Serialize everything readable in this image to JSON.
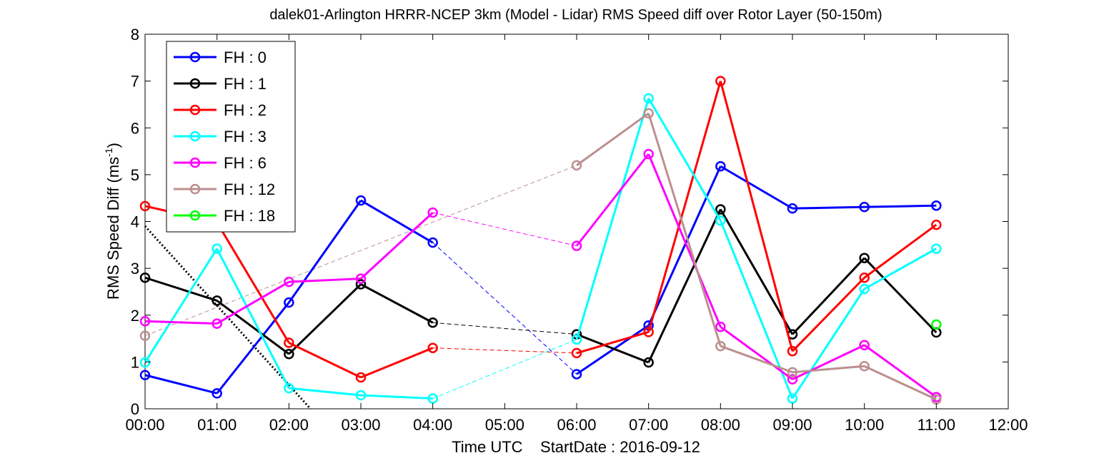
{
  "chart_data": {
    "type": "line",
    "title": "dalek01-Arlington HRRR-NCEP 3km (Model - Lidar) RMS Speed diff over Rotor Layer (50-150m)",
    "xlabel": "Time UTC    StartDate : 2016-09-12",
    "ylabel_main": "RMS Speed Diff (ms",
    "ylabel_sup": "-1",
    "ylabel_end": ")",
    "x_ticks": [
      "00:00",
      "01:00",
      "02:00",
      "03:00",
      "04:00",
      "05:00",
      "06:00",
      "07:00",
      "08:00",
      "09:00",
      "10:00",
      "11:00",
      "12:00"
    ],
    "xlim": [
      0,
      12
    ],
    "ylim": [
      0,
      8
    ],
    "y_ticks": [
      "0",
      "1",
      "2",
      "3",
      "4",
      "5",
      "6",
      "7",
      "8"
    ],
    "grid": false,
    "legend_position": "top-left",
    "dashed_link_note": "thin dashed lines connect points across gaps",
    "series": [
      {
        "name": "FH : 0",
        "color": "#0000ff",
        "x": [
          0,
          1,
          2,
          3,
          4,
          6,
          7,
          8,
          9,
          10,
          11
        ],
        "y": [
          0.72,
          0.33,
          2.27,
          4.45,
          3.55,
          0.74,
          1.78,
          5.18,
          4.28,
          4.31,
          4.34
        ]
      },
      {
        "name": "FH : 1",
        "color": "#000000",
        "x": [
          0,
          1,
          2,
          3,
          4,
          6,
          7,
          8,
          9,
          10,
          11
        ],
        "y": [
          2.8,
          2.31,
          1.17,
          2.66,
          1.84,
          1.59,
          0.99,
          4.26,
          1.59,
          3.22,
          1.63
        ]
      },
      {
        "name": "FH : 2",
        "color": "#ff0000",
        "x": [
          0,
          1,
          2,
          3,
          4,
          6,
          7,
          8,
          9,
          10,
          11
        ],
        "y": [
          4.33,
          3.98,
          1.41,
          0.67,
          1.3,
          1.19,
          1.64,
          7.0,
          1.23,
          2.8,
          3.93
        ]
      },
      {
        "name": "FH : 3",
        "color": "#00ffff",
        "x": [
          0,
          1,
          2,
          3,
          4,
          6,
          7,
          8,
          9,
          10,
          11
        ],
        "y": [
          0.99,
          3.42,
          0.44,
          0.29,
          0.22,
          1.48,
          6.63,
          4.02,
          0.22,
          2.56,
          3.42
        ]
      },
      {
        "name": "FH : 6",
        "color": "#ff00ff",
        "x": [
          0,
          1,
          2,
          3,
          4,
          6,
          7,
          8,
          9,
          10,
          11
        ],
        "y": [
          1.87,
          1.82,
          2.71,
          2.78,
          4.19,
          3.48,
          5.44,
          1.75,
          0.63,
          1.36,
          0.25
        ]
      },
      {
        "name": "FH : 12",
        "color": "#bc8f8f",
        "x": [
          0,
          6,
          7,
          8,
          9,
          10,
          11
        ],
        "y": [
          1.56,
          5.2,
          6.31,
          1.34,
          0.78,
          0.91,
          0.2
        ]
      },
      {
        "name": "FH : 18",
        "color": "#00ff00",
        "x": [
          11
        ],
        "y": [
          1.8
        ]
      }
    ],
    "trend_line": {
      "color": "#000000",
      "style": "dotted",
      "x": [
        0,
        2.3
      ],
      "y": [
        3.9,
        0
      ]
    }
  }
}
